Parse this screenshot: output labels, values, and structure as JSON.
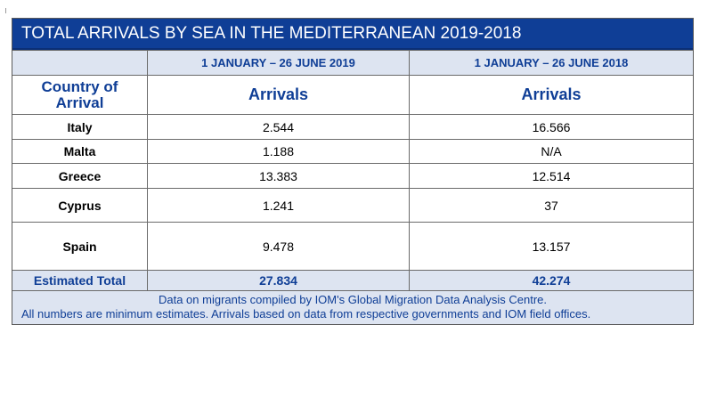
{
  "title": "TOTAL ARRIVALS BY SEA IN THE MEDITERRANEAN 2019-2018",
  "periods": [
    "1 JANUARY – 26 JUNE 2019",
    "1 JANUARY – 26 JUNE 2018"
  ],
  "header": {
    "country_line1": "Country of",
    "country_line2": "Arrival",
    "col2": "Arrivals",
    "col3": "Arrivals"
  },
  "rows": [
    {
      "country": "Italy",
      "y2019": "2.544",
      "y2018": "16.566"
    },
    {
      "country": "Malta",
      "y2019": "1.188",
      "y2018": "N/A"
    },
    {
      "country": "Greece",
      "y2019": "13.383",
      "y2018": "12.514"
    },
    {
      "country": "Cyprus",
      "y2019": "1.241",
      "y2018": "37"
    },
    {
      "country": "Spain",
      "y2019": "9.478",
      "y2018": "13.157"
    }
  ],
  "total": {
    "label": "Estimated Total",
    "y2019": "27.834",
    "y2018": "42.274"
  },
  "footer": {
    "line1": "Data on migrants compiled by IOM's Global Migration Data Analysis Centre.",
    "line2": "All numbers are minimum estimates. Arrivals based on data from respective governments and IOM field offices."
  },
  "colors": {
    "title_bg": "#0f3e96",
    "band_bg": "#dde4f1",
    "accent_text": "#0f3e96"
  }
}
